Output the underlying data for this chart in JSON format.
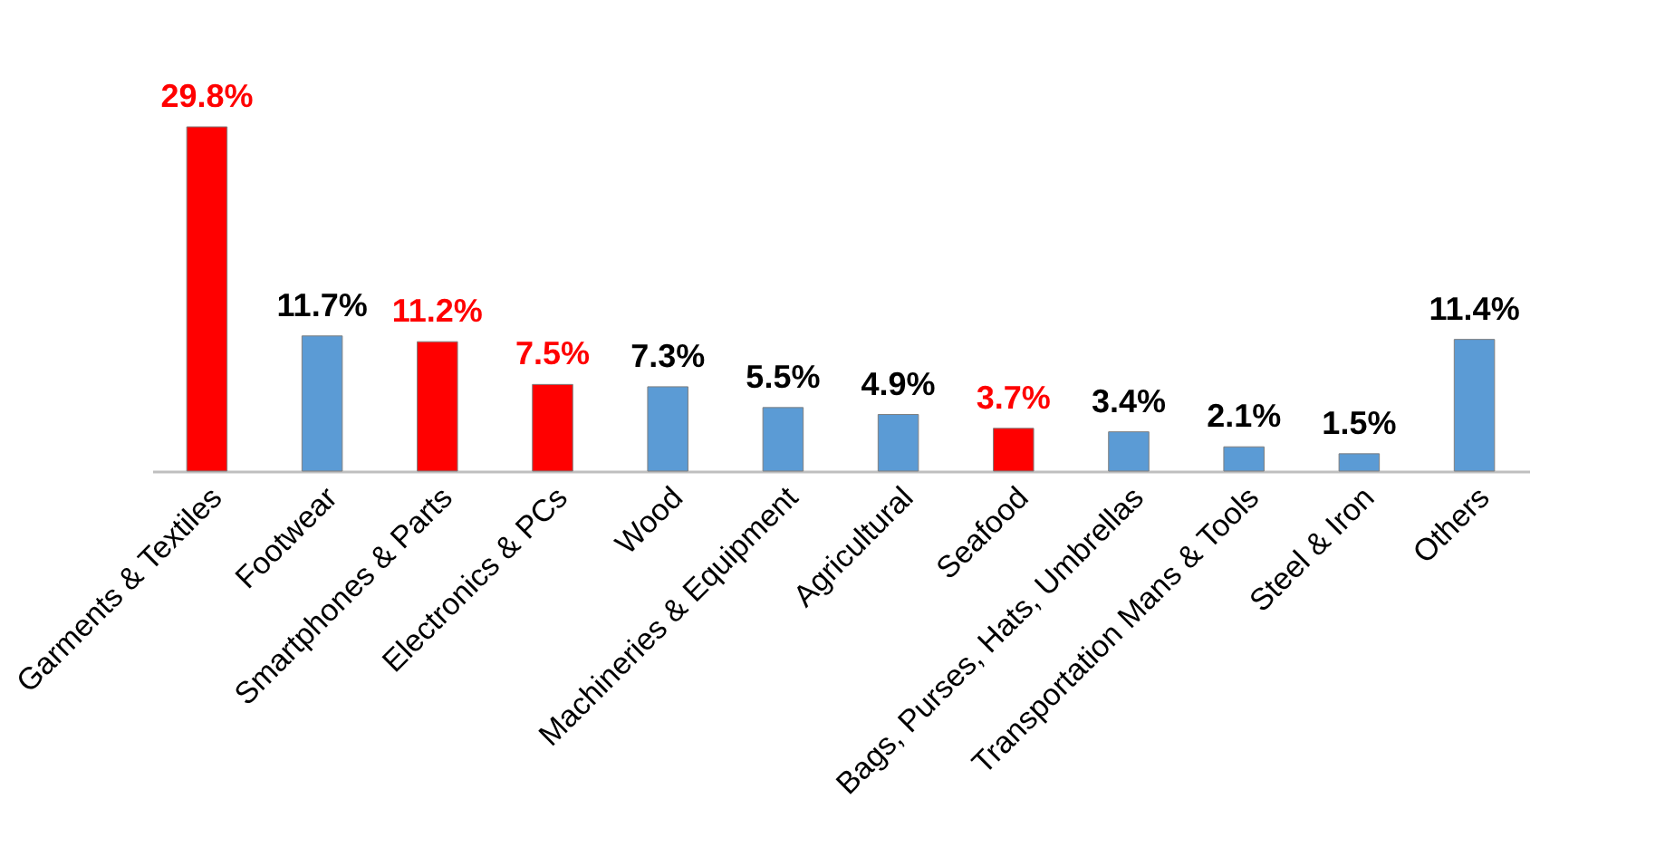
{
  "chart_data": {
    "type": "bar",
    "categories": [
      "Garments & Textiles",
      "Footwear",
      "Smartphones & Parts",
      "Electronics & PCs",
      "Wood",
      "Machineries & Equipment",
      "Agricultural",
      "Seafood",
      "Bags, Purses, Hats, Umbrellas",
      "Transportation Mans & Tools",
      "Steel & Iron",
      "Others"
    ],
    "values": [
      29.8,
      11.7,
      11.2,
      7.5,
      7.3,
      5.5,
      4.9,
      3.7,
      3.4,
      2.1,
      1.5,
      11.4
    ],
    "colors": [
      "#ff0000",
      "#5b9bd5",
      "#ff0000",
      "#ff0000",
      "#5b9bd5",
      "#5b9bd5",
      "#5b9bd5",
      "#ff0000",
      "#5b9bd5",
      "#5b9bd5",
      "#5b9bd5",
      "#5b9bd5"
    ],
    "value_labels": [
      "29.8%",
      "11.7%",
      "11.2%",
      "7.5%",
      "7.3%",
      "5.5%",
      "4.9%",
      "3.7%",
      "3.4%",
      "2.1%",
      "1.5%",
      "11.4%"
    ]
  }
}
